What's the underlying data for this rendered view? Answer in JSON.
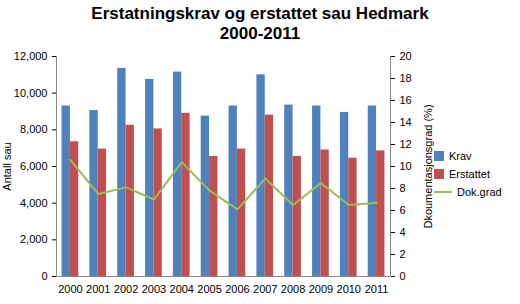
{
  "chart_data": {
    "type": "bar",
    "title": "Erstatningskrav og erstattet sau Hedmark 2000-2011",
    "y_label": "Antall sau",
    "y2_label": "Dkoumentasjonsgrad (%)",
    "categories": [
      "2000",
      "2001",
      "2002",
      "2003",
      "2004",
      "2005",
      "2006",
      "2007",
      "2008",
      "2009",
      "2010",
      "2011"
    ],
    "ylim": [
      0,
      12000
    ],
    "yticks": [
      0,
      2000,
      4000,
      6000,
      8000,
      10000,
      12000
    ],
    "y2lim": [
      0,
      20
    ],
    "y2ticks": [
      0,
      2,
      4,
      6,
      8,
      10,
      12,
      14,
      16,
      18,
      20
    ],
    "grid": false,
    "legend": "right",
    "series": [
      {
        "name": "Krav",
        "type": "bar",
        "color": "#4f81bd",
        "values": [
          9300,
          9050,
          11350,
          10750,
          11150,
          8750,
          9300,
          11000,
          9350,
          9300,
          8950,
          9300
        ]
      },
      {
        "name": "Erstattet",
        "type": "bar",
        "color": "#c0504d",
        "values": [
          7350,
          6950,
          8250,
          8050,
          8900,
          6550,
          6950,
          8800,
          6550,
          6900,
          6450,
          6850
        ]
      },
      {
        "name": "Dok.grad",
        "type": "line",
        "axis": "y2",
        "color": "#9bbb59",
        "values": [
          10.6,
          7.5,
          8.1,
          7.0,
          10.4,
          7.8,
          6.1,
          8.9,
          6.5,
          8.5,
          6.5,
          6.7
        ]
      }
    ]
  }
}
